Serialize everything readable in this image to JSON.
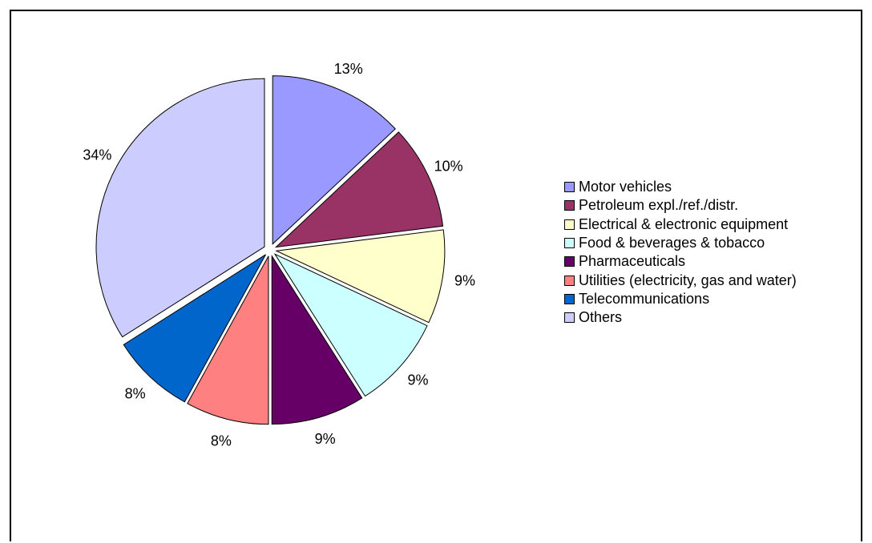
{
  "chart_data": {
    "type": "pie",
    "exploded": true,
    "labels": [
      "Motor vehicles",
      "Petroleum expl./ref./distr.",
      "Electrical & electronic equipment",
      "Food & beverages & tobacco",
      "Pharmaceuticals",
      "Utilities (electricity, gas and water)",
      "Telecommunications",
      "Others"
    ],
    "values": [
      13,
      10,
      9,
      9,
      9,
      8,
      8,
      34
    ],
    "value_labels": [
      "13%",
      "10%",
      "9%",
      "9%",
      "9%",
      "8%",
      "8%",
      "34%"
    ],
    "colors": [
      "#9999FF",
      "#993366",
      "#FFFFCC",
      "#CCFFFF",
      "#660066",
      "#FF8080",
      "#0066CC",
      "#CCCCFF"
    ],
    "legend_position": "right"
  }
}
